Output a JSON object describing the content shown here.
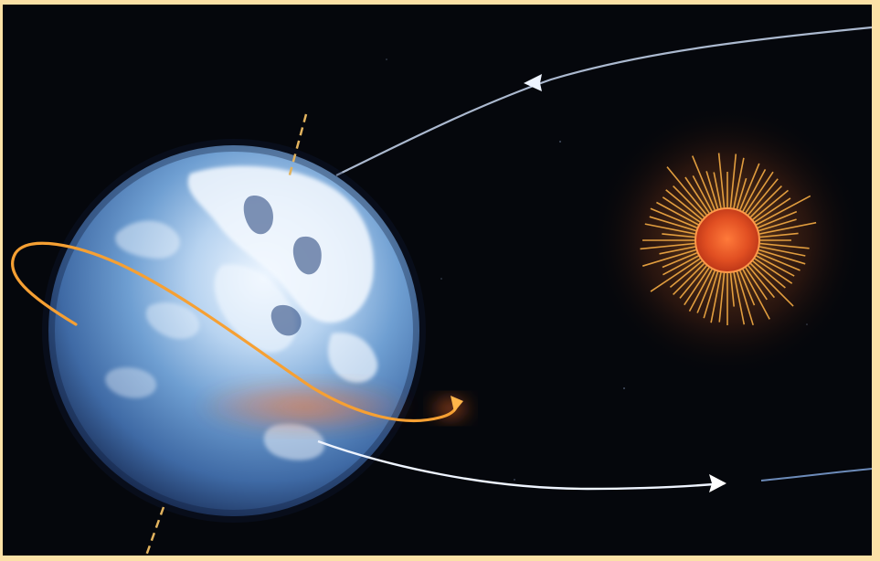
{
  "image": {
    "border_color": "#fbe1a6",
    "background_color": "#06080d",
    "objects": [
      {
        "name": "earth",
        "color": "#5f8fc6"
      },
      {
        "name": "sun",
        "color": "#e65a22",
        "ray_color": "#f1a43b"
      },
      {
        "name": "earth-rotation-arrow",
        "color": "#f39a2c"
      },
      {
        "name": "earth-orbit-arrow",
        "color": "#e8f0ff"
      },
      {
        "name": "earth-axis",
        "color": "#e2b35e"
      }
    ]
  }
}
